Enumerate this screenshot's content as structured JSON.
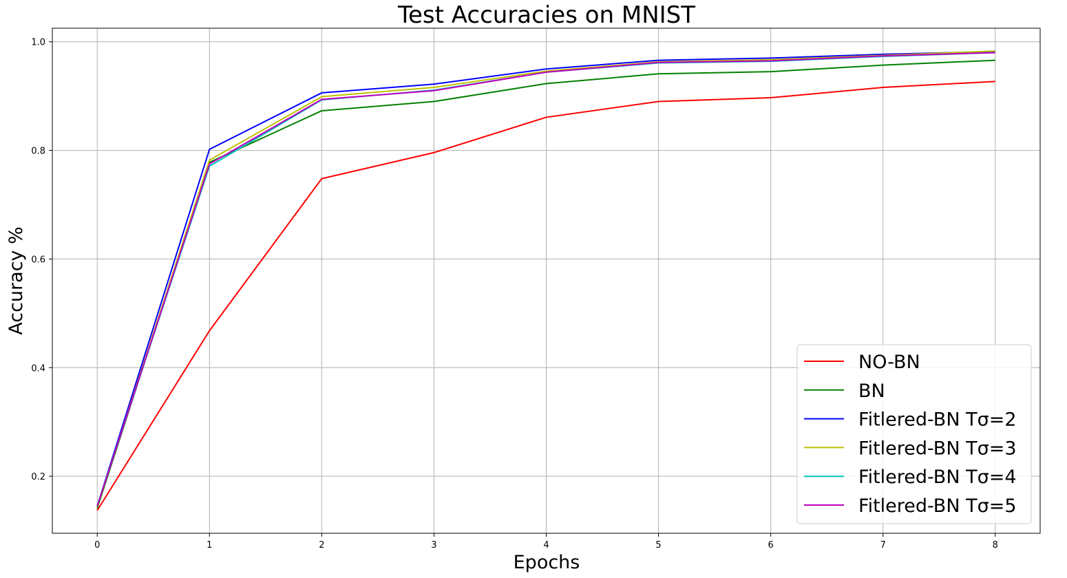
{
  "chart_data": {
    "type": "line",
    "title": "Test Accuracies on MNIST",
    "xlabel": "Epochs",
    "ylabel": "Accuracy %",
    "x": [
      0,
      1,
      2,
      3,
      4,
      5,
      6,
      7,
      8
    ],
    "xlim": [
      -0.4,
      8.4
    ],
    "ylim": [
      0.095,
      1.025
    ],
    "xticks": [
      "0",
      "1",
      "2",
      "3",
      "4",
      "5",
      "6",
      "7",
      "8"
    ],
    "yticks": [
      "0.2",
      "0.4",
      "0.6",
      "0.8",
      "1.0"
    ],
    "grid": true,
    "legend_position": "lower-right",
    "series": [
      {
        "name": "NO-BN",
        "color": "#ff0000",
        "values": [
          0.137,
          0.468,
          0.748,
          0.796,
          0.861,
          0.89,
          0.897,
          0.916,
          0.927
        ]
      },
      {
        "name": "BN",
        "color": "#008000",
        "values": [
          0.141,
          0.778,
          0.873,
          0.89,
          0.923,
          0.941,
          0.945,
          0.957,
          0.966
        ]
      },
      {
        "name": "Fitlered-BN Tσ=2",
        "color": "#0000ff",
        "values": [
          0.145,
          0.802,
          0.906,
          0.922,
          0.95,
          0.966,
          0.97,
          0.977,
          0.982
        ]
      },
      {
        "name": "Fitlered-BN Tσ=3",
        "color": "#bfbf00",
        "values": [
          0.144,
          0.782,
          0.899,
          0.916,
          0.946,
          0.963,
          0.967,
          0.975,
          0.983
        ]
      },
      {
        "name": "Fitlered-BN Tσ=4",
        "color": "#00bfbf",
        "values": [
          0.146,
          0.771,
          0.893,
          0.911,
          0.944,
          0.961,
          0.964,
          0.973,
          0.98
        ]
      },
      {
        "name": "Fitlered-BN Tσ=5",
        "color": "#bf00bf",
        "values": [
          0.145,
          0.775,
          0.894,
          0.91,
          0.944,
          0.962,
          0.965,
          0.974,
          0.98
        ]
      }
    ]
  }
}
